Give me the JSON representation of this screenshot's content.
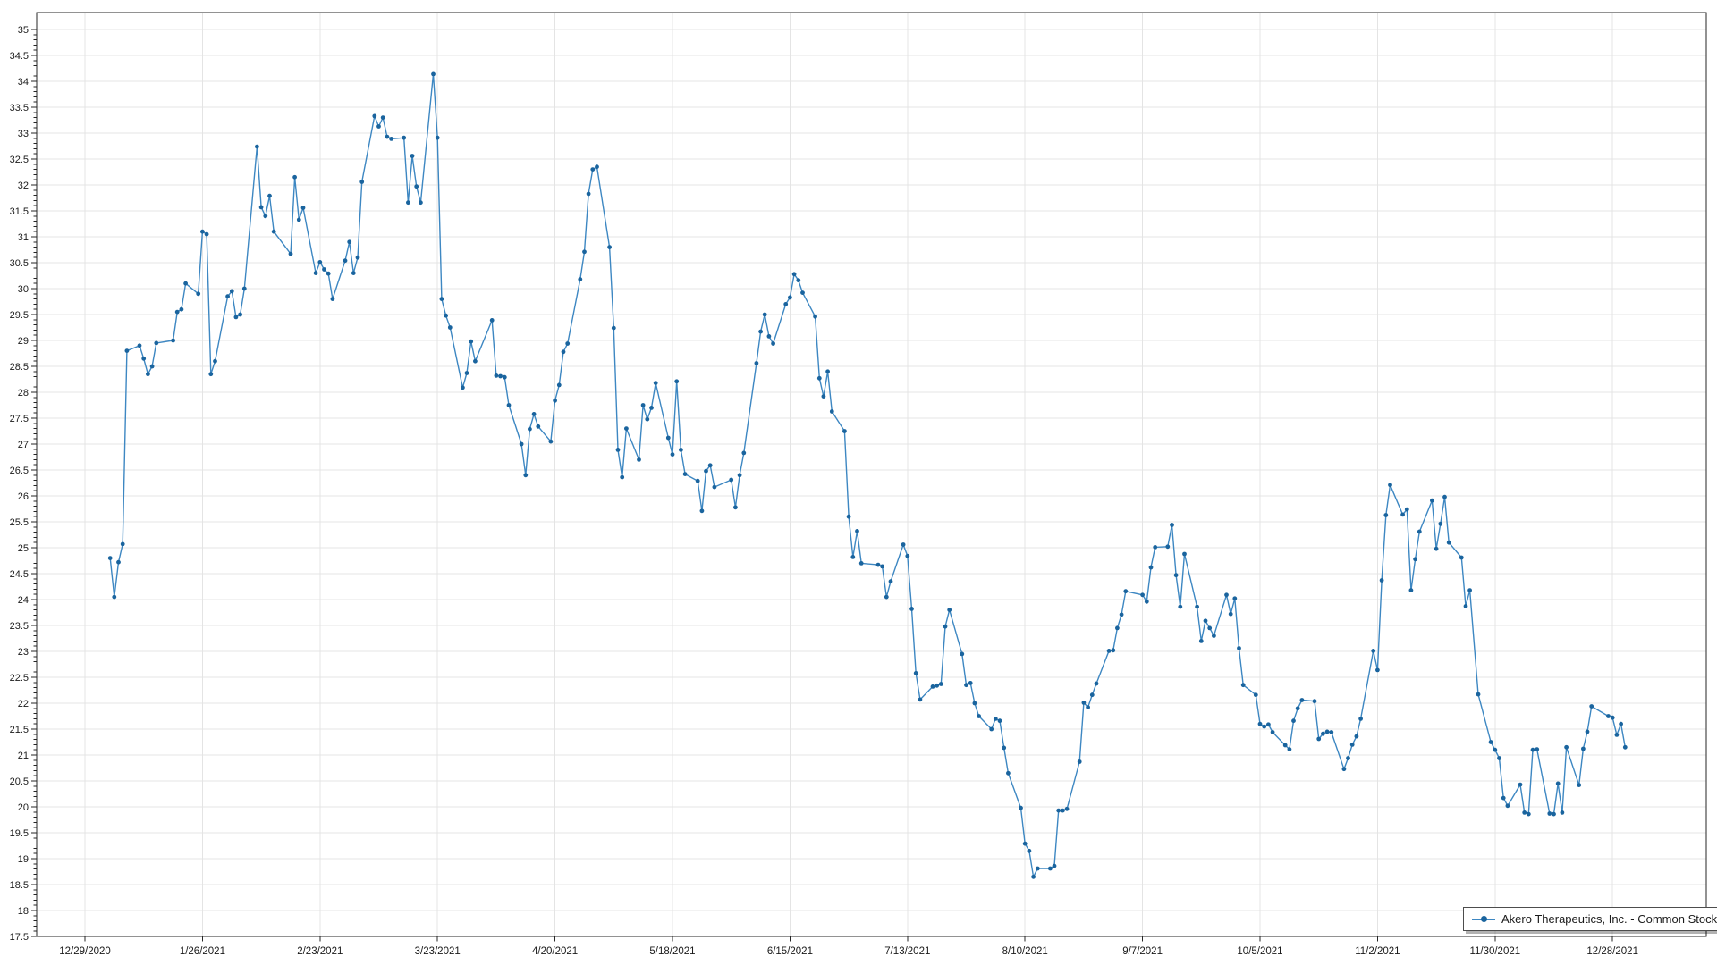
{
  "legend": {
    "label": "Akero Therapeutics, Inc. - Common Stock"
  },
  "colors": {
    "line": "#3d87c2",
    "marker": "#1a649e",
    "grid": "#e4e4e4",
    "axis": "#262626",
    "tick_label": "#1a1a1a",
    "background": "#ffffff"
  },
  "chart_data": {
    "type": "line",
    "title": "",
    "xlabel": "",
    "ylabel": "",
    "grid": true,
    "legend_position": "bottom-right",
    "ylim": [
      17.5,
      35
    ],
    "y_tick_step": 0.5,
    "y_minor_tick_step": 0.1,
    "x_epoch": "2020-12-29",
    "x_tick_interval_days": 28,
    "x_tick_labels": [
      "12/29/2020",
      "1/26/2021",
      "2/23/2021",
      "3/23/2021",
      "4/20/2021",
      "5/18/2021",
      "6/15/2021",
      "7/13/2021",
      "8/10/2021",
      "9/7/2021",
      "10/5/2021",
      "11/2/2021",
      "11/30/2021",
      "12/28/2021"
    ],
    "series": [
      {
        "name": "Akero Therapeutics, Inc. - Common Stock",
        "points": [
          [
            "2021-01-04",
            24.8
          ],
          [
            "2021-01-05",
            24.05
          ],
          [
            "2021-01-06",
            24.72
          ],
          [
            "2021-01-07",
            25.07
          ],
          [
            "2021-01-08",
            28.8
          ],
          [
            "2021-01-11",
            28.9
          ],
          [
            "2021-01-12",
            28.65
          ],
          [
            "2021-01-13",
            28.35
          ],
          [
            "2021-01-14",
            28.5
          ],
          [
            "2021-01-15",
            28.95
          ],
          [
            "2021-01-19",
            29.0
          ],
          [
            "2021-01-20",
            29.55
          ],
          [
            "2021-01-21",
            29.6
          ],
          [
            "2021-01-22",
            30.1
          ],
          [
            "2021-01-25",
            29.9
          ],
          [
            "2021-01-26",
            31.1
          ],
          [
            "2021-01-27",
            31.05
          ],
          [
            "2021-01-28",
            28.35
          ],
          [
            "2021-01-29",
            28.6
          ],
          [
            "2021-02-01",
            29.85
          ],
          [
            "2021-02-02",
            29.95
          ],
          [
            "2021-02-03",
            29.45
          ],
          [
            "2021-02-04",
            29.5
          ],
          [
            "2021-02-05",
            30.0
          ],
          [
            "2021-02-08",
            32.74
          ],
          [
            "2021-02-09",
            31.57
          ],
          [
            "2021-02-10",
            31.4
          ],
          [
            "2021-02-11",
            31.79
          ],
          [
            "2021-02-12",
            31.1
          ],
          [
            "2021-02-16",
            30.67
          ],
          [
            "2021-02-17",
            32.15
          ],
          [
            "2021-02-18",
            31.33
          ],
          [
            "2021-02-19",
            31.56
          ],
          [
            "2021-02-22",
            30.3
          ],
          [
            "2021-02-23",
            30.51
          ],
          [
            "2021-02-24",
            30.37
          ],
          [
            "2021-02-25",
            30.29
          ],
          [
            "2021-02-26",
            29.8
          ],
          [
            "2021-03-01",
            30.54
          ],
          [
            "2021-03-02",
            30.9
          ],
          [
            "2021-03-03",
            30.3
          ],
          [
            "2021-03-04",
            30.6
          ],
          [
            "2021-03-05",
            32.06
          ],
          [
            "2021-03-08",
            33.33
          ],
          [
            "2021-03-09",
            33.13
          ],
          [
            "2021-03-10",
            33.3
          ],
          [
            "2021-03-11",
            32.93
          ],
          [
            "2021-03-12",
            32.89
          ],
          [
            "2021-03-15",
            32.91
          ],
          [
            "2021-03-16",
            31.66
          ],
          [
            "2021-03-17",
            32.56
          ],
          [
            "2021-03-18",
            31.97
          ],
          [
            "2021-03-19",
            31.66
          ],
          [
            "2021-03-22",
            34.14
          ],
          [
            "2021-03-23",
            32.91
          ],
          [
            "2021-03-24",
            29.8
          ],
          [
            "2021-03-25",
            29.48
          ],
          [
            "2021-03-26",
            29.25
          ],
          [
            "2021-03-29",
            28.09
          ],
          [
            "2021-03-30",
            28.37
          ],
          [
            "2021-03-31",
            28.98
          ],
          [
            "2021-04-01",
            28.6
          ],
          [
            "2021-04-05",
            29.39
          ],
          [
            "2021-04-06",
            28.32
          ],
          [
            "2021-04-07",
            28.31
          ],
          [
            "2021-04-08",
            28.29
          ],
          [
            "2021-04-09",
            27.75
          ],
          [
            "2021-04-12",
            27.0
          ],
          [
            "2021-04-13",
            26.4
          ],
          [
            "2021-04-14",
            27.29
          ],
          [
            "2021-04-15",
            27.58
          ],
          [
            "2021-04-16",
            27.34
          ],
          [
            "2021-04-19",
            27.05
          ],
          [
            "2021-04-20",
            27.84
          ],
          [
            "2021-04-21",
            28.14
          ],
          [
            "2021-04-22",
            28.78
          ],
          [
            "2021-04-23",
            28.94
          ],
          [
            "2021-04-26",
            30.18
          ],
          [
            "2021-04-27",
            30.71
          ],
          [
            "2021-04-28",
            31.83
          ],
          [
            "2021-04-29",
            32.3
          ],
          [
            "2021-04-30",
            32.35
          ],
          [
            "2021-05-03",
            30.8
          ],
          [
            "2021-05-04",
            29.24
          ],
          [
            "2021-05-05",
            26.89
          ],
          [
            "2021-05-06",
            26.36
          ],
          [
            "2021-05-07",
            27.3
          ],
          [
            "2021-05-10",
            26.7
          ],
          [
            "2021-05-11",
            27.75
          ],
          [
            "2021-05-12",
            27.48
          ],
          [
            "2021-05-13",
            27.7
          ],
          [
            "2021-05-14",
            28.18
          ],
          [
            "2021-05-17",
            27.12
          ],
          [
            "2021-05-18",
            26.8
          ],
          [
            "2021-05-19",
            28.21
          ],
          [
            "2021-05-20",
            26.89
          ],
          [
            "2021-05-21",
            26.42
          ],
          [
            "2021-05-24",
            26.29
          ],
          [
            "2021-05-25",
            25.71
          ],
          [
            "2021-05-26",
            26.48
          ],
          [
            "2021-05-27",
            26.59
          ],
          [
            "2021-05-28",
            26.17
          ],
          [
            "2021-06-01",
            26.31
          ],
          [
            "2021-06-02",
            25.78
          ],
          [
            "2021-06-03",
            26.4
          ],
          [
            "2021-06-04",
            26.83
          ],
          [
            "2021-06-07",
            28.56
          ],
          [
            "2021-06-08",
            29.17
          ],
          [
            "2021-06-09",
            29.5
          ],
          [
            "2021-06-10",
            29.08
          ],
          [
            "2021-06-11",
            28.94
          ],
          [
            "2021-06-14",
            29.7
          ],
          [
            "2021-06-15",
            29.83
          ],
          [
            "2021-06-16",
            30.28
          ],
          [
            "2021-06-17",
            30.16
          ],
          [
            "2021-06-18",
            29.92
          ],
          [
            "2021-06-21",
            29.46
          ],
          [
            "2021-06-22",
            28.27
          ],
          [
            "2021-06-23",
            27.92
          ],
          [
            "2021-06-24",
            28.4
          ],
          [
            "2021-06-25",
            27.63
          ],
          [
            "2021-06-28",
            27.25
          ],
          [
            "2021-06-29",
            25.6
          ],
          [
            "2021-06-30",
            24.82
          ],
          [
            "2021-07-01",
            25.32
          ],
          [
            "2021-07-02",
            24.7
          ],
          [
            "2021-07-06",
            24.67
          ],
          [
            "2021-07-07",
            24.64
          ],
          [
            "2021-07-08",
            24.05
          ],
          [
            "2021-07-09",
            24.35
          ],
          [
            "2021-07-12",
            25.06
          ],
          [
            "2021-07-13",
            24.84
          ],
          [
            "2021-07-14",
            23.82
          ],
          [
            "2021-07-15",
            22.58
          ],
          [
            "2021-07-16",
            22.07
          ],
          [
            "2021-07-19",
            22.32
          ],
          [
            "2021-07-20",
            22.34
          ],
          [
            "2021-07-21",
            22.37
          ],
          [
            "2021-07-22",
            23.48
          ],
          [
            "2021-07-23",
            23.8
          ],
          [
            "2021-07-26",
            22.95
          ],
          [
            "2021-07-27",
            22.35
          ],
          [
            "2021-07-28",
            22.39
          ],
          [
            "2021-07-29",
            22.0
          ],
          [
            "2021-07-30",
            21.75
          ],
          [
            "2021-08-02",
            21.5
          ],
          [
            "2021-08-03",
            21.7
          ],
          [
            "2021-08-04",
            21.66
          ],
          [
            "2021-08-05",
            21.14
          ],
          [
            "2021-08-06",
            20.65
          ],
          [
            "2021-08-09",
            19.98
          ],
          [
            "2021-08-10",
            19.29
          ],
          [
            "2021-08-11",
            19.15
          ],
          [
            "2021-08-12",
            18.65
          ],
          [
            "2021-08-13",
            18.81
          ],
          [
            "2021-08-16",
            18.81
          ],
          [
            "2021-08-17",
            18.86
          ],
          [
            "2021-08-18",
            19.93
          ],
          [
            "2021-08-19",
            19.93
          ],
          [
            "2021-08-20",
            19.96
          ],
          [
            "2021-08-23",
            20.87
          ],
          [
            "2021-08-24",
            22.01
          ],
          [
            "2021-08-25",
            21.92
          ],
          [
            "2021-08-26",
            22.16
          ],
          [
            "2021-08-27",
            22.38
          ],
          [
            "2021-08-30",
            23.01
          ],
          [
            "2021-08-31",
            23.02
          ],
          [
            "2021-09-01",
            23.45
          ],
          [
            "2021-09-02",
            23.71
          ],
          [
            "2021-09-03",
            24.16
          ],
          [
            "2021-09-07",
            24.09
          ],
          [
            "2021-09-08",
            23.96
          ],
          [
            "2021-09-09",
            24.62
          ],
          [
            "2021-09-10",
            25.01
          ],
          [
            "2021-09-13",
            25.02
          ],
          [
            "2021-09-14",
            25.44
          ],
          [
            "2021-09-15",
            24.47
          ],
          [
            "2021-09-16",
            23.86
          ],
          [
            "2021-09-17",
            24.88
          ],
          [
            "2021-09-20",
            23.86
          ],
          [
            "2021-09-21",
            23.2
          ],
          [
            "2021-09-22",
            23.59
          ],
          [
            "2021-09-23",
            23.45
          ],
          [
            "2021-09-24",
            23.3
          ],
          [
            "2021-09-27",
            24.09
          ],
          [
            "2021-09-28",
            23.72
          ],
          [
            "2021-09-29",
            24.02
          ],
          [
            "2021-09-30",
            23.06
          ],
          [
            "2021-10-01",
            22.35
          ],
          [
            "2021-10-04",
            22.16
          ],
          [
            "2021-10-05",
            21.6
          ],
          [
            "2021-10-06",
            21.55
          ],
          [
            "2021-10-07",
            21.59
          ],
          [
            "2021-10-08",
            21.44
          ],
          [
            "2021-10-11",
            21.19
          ],
          [
            "2021-10-12",
            21.11
          ],
          [
            "2021-10-13",
            21.66
          ],
          [
            "2021-10-14",
            21.9
          ],
          [
            "2021-10-15",
            22.06
          ],
          [
            "2021-10-18",
            22.04
          ],
          [
            "2021-10-19",
            21.31
          ],
          [
            "2021-10-20",
            21.41
          ],
          [
            "2021-10-21",
            21.45
          ],
          [
            "2021-10-22",
            21.44
          ],
          [
            "2021-10-25",
            20.73
          ],
          [
            "2021-10-26",
            20.94
          ],
          [
            "2021-10-27",
            21.2
          ],
          [
            "2021-10-28",
            21.36
          ],
          [
            "2021-10-29",
            21.7
          ],
          [
            "2021-11-01",
            23.01
          ],
          [
            "2021-11-02",
            22.64
          ],
          [
            "2021-11-03",
            24.37
          ],
          [
            "2021-11-04",
            25.63
          ],
          [
            "2021-11-05",
            26.21
          ],
          [
            "2021-11-08",
            25.64
          ],
          [
            "2021-11-09",
            25.74
          ],
          [
            "2021-11-10",
            24.18
          ],
          [
            "2021-11-11",
            24.78
          ],
          [
            "2021-11-12",
            25.31
          ],
          [
            "2021-11-15",
            25.91
          ],
          [
            "2021-11-16",
            24.98
          ],
          [
            "2021-11-17",
            25.46
          ],
          [
            "2021-11-18",
            25.98
          ],
          [
            "2021-11-19",
            25.1
          ],
          [
            "2021-11-22",
            24.81
          ],
          [
            "2021-11-23",
            23.87
          ],
          [
            "2021-11-24",
            24.18
          ],
          [
            "2021-11-26",
            22.17
          ],
          [
            "2021-11-29",
            21.25
          ],
          [
            "2021-11-30",
            21.1
          ],
          [
            "2021-12-01",
            20.94
          ],
          [
            "2021-12-02",
            20.17
          ],
          [
            "2021-12-03",
            20.02
          ],
          [
            "2021-12-06",
            20.43
          ],
          [
            "2021-12-07",
            19.89
          ],
          [
            "2021-12-08",
            19.86
          ],
          [
            "2021-12-09",
            21.1
          ],
          [
            "2021-12-10",
            21.11
          ],
          [
            "2021-12-13",
            19.87
          ],
          [
            "2021-12-14",
            19.86
          ],
          [
            "2021-12-15",
            20.45
          ],
          [
            "2021-12-16",
            19.89
          ],
          [
            "2021-12-17",
            21.15
          ],
          [
            "2021-12-20",
            20.42
          ],
          [
            "2021-12-21",
            21.12
          ],
          [
            "2021-12-22",
            21.45
          ],
          [
            "2021-12-23",
            21.94
          ],
          [
            "2021-12-27",
            21.75
          ],
          [
            "2021-12-28",
            21.72
          ],
          [
            "2021-12-29",
            21.39
          ],
          [
            "2021-12-30",
            21.6
          ],
          [
            "2021-12-31",
            21.15
          ]
        ]
      }
    ]
  }
}
